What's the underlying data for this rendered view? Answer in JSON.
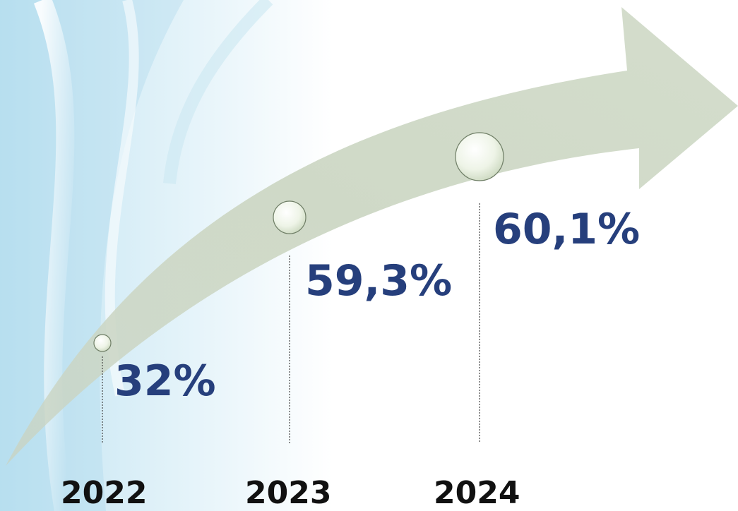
{
  "colors": {
    "arrow_fill": "#D2DCCB",
    "marker_fill": "#EEF4E7",
    "marker_stroke": "#6F7E66",
    "value_text": "#263F7C",
    "year_text": "#111111",
    "guide_line": "#444444"
  },
  "chart_data": {
    "type": "line",
    "title": "",
    "xlabel": "",
    "ylabel": "",
    "categories": [
      "2022",
      "2023",
      "2024"
    ],
    "series": [
      {
        "values": [
          32,
          59.3,
          60.1
        ],
        "labels": [
          "32%",
          "59,3%",
          "60,1%"
        ]
      }
    ],
    "grid": false,
    "legend": "none"
  }
}
